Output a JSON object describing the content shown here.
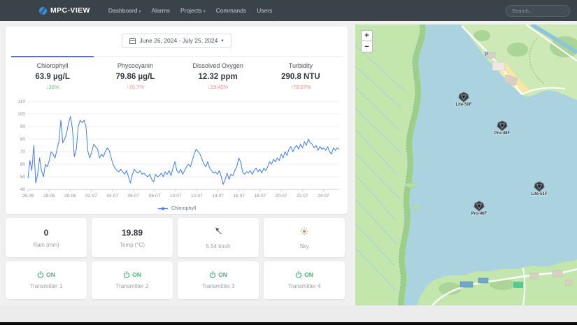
{
  "navbar": {
    "brand": "MPC-VIEW",
    "menu": [
      {
        "label": "Dashboard",
        "dropdown": true
      },
      {
        "label": "Alarms",
        "dropdown": false
      },
      {
        "label": "Projects",
        "dropdown": true
      },
      {
        "label": "Commands",
        "dropdown": false
      },
      {
        "label": "Users",
        "dropdown": false
      }
    ],
    "search_placeholder": "Search..."
  },
  "toolbar": {
    "date_range": "June 26, 2024 - July 25, 2024"
  },
  "metrics": [
    {
      "label": "Chlorophyll",
      "value": "63.9 µg/L",
      "change": "30%",
      "direction": "down",
      "trend_color": "#6fbf82",
      "active": true
    },
    {
      "label": "Phycocyanin",
      "value": "79.86 µg/L",
      "change": "79.7%",
      "direction": "up",
      "trend_color": "#f08c8c",
      "active": false
    },
    {
      "label": "Dissolved Oxygen",
      "value": "12.32 ppm",
      "change": "19.42%",
      "direction": "down",
      "trend_color": "#f08c8c",
      "active": false
    },
    {
      "label": "Turbidity",
      "value": "290.8 NTU",
      "change": "78.07%",
      "direction": "up",
      "trend_color": "#f08c8c",
      "active": false
    }
  ],
  "chart_data": {
    "type": "line",
    "title": "",
    "xlabel": "",
    "ylabel": "",
    "ylim": [
      40,
      110
    ],
    "y_ticks": [
      40,
      50,
      60,
      70,
      80,
      90,
      100,
      110
    ],
    "x_ticks": [
      "26-06",
      "28-06",
      "30-06",
      "02-07",
      "04-07",
      "06-07",
      "08-07",
      "10-07",
      "12-07",
      "14-07",
      "16-07",
      "18-07",
      "20-07",
      "22-07",
      "24-07"
    ],
    "x_total_days": 29.5,
    "x_tick_interval_days": 2,
    "grid": true,
    "legend_position": "bottom",
    "series": [
      {
        "name": "Chlorophyll",
        "color": "#3f7ee8",
        "values": [
          49,
          63,
          55,
          75,
          45,
          52,
          65,
          55,
          50,
          60,
          58,
          63,
          70,
          68,
          65,
          72,
          78,
          95,
          77,
          80,
          85,
          93,
          98,
          88,
          66,
          72,
          90,
          95,
          93,
          95,
          90,
          70,
          65,
          70,
          76,
          74,
          72,
          65,
          68,
          66,
          70,
          73,
          71,
          65,
          60,
          57,
          55,
          54,
          56,
          54,
          52,
          55,
          50,
          45,
          52,
          56,
          54,
          53,
          55,
          52,
          53,
          51,
          50,
          52,
          48,
          46,
          52,
          50,
          51,
          53,
          50,
          54,
          52,
          55,
          51,
          57,
          62,
          55,
          53,
          56,
          52,
          55,
          58,
          60,
          58,
          63,
          68,
          72,
          70,
          68,
          64,
          60,
          58,
          62,
          57,
          55,
          53,
          54,
          52,
          55,
          50,
          44,
          48,
          53,
          48,
          52,
          51,
          55,
          58,
          65,
          62,
          54,
          52,
          54,
          53,
          55,
          52,
          55,
          57,
          54,
          56,
          53,
          57,
          55,
          58,
          62,
          60,
          64,
          62,
          65,
          63,
          68,
          65,
          70,
          67,
          72,
          74,
          70,
          73,
          75,
          72,
          76,
          73,
          78,
          75,
          80,
          77,
          76,
          73,
          75,
          71,
          74,
          72,
          73,
          71,
          74,
          70,
          68,
          73,
          71,
          73,
          72
        ]
      }
    ]
  },
  "weather": [
    {
      "value": "0",
      "label": "Rain (mm)",
      "icon": null
    },
    {
      "value": "19.89",
      "label": "Temp (°C)",
      "icon": null
    },
    {
      "value": null,
      "label": "5.54 km/h",
      "icon": "wind-direction-arrow"
    },
    {
      "value": null,
      "label": "Sky",
      "icon": "sun"
    }
  ],
  "transmitters": [
    {
      "status": "ON",
      "label": "Transmitter 1"
    },
    {
      "status": "ON",
      "label": "Transmitter 2"
    },
    {
      "status": "ON",
      "label": "Transmitter 3"
    },
    {
      "status": "ON",
      "label": "Transmitter 4"
    }
  ],
  "map": {
    "zoom_in_label": "+",
    "zoom_out_label": "−",
    "markers": [
      {
        "label": "Lite-50F",
        "x": 155,
        "y": 104
      },
      {
        "label": "Pro-48F",
        "x": 210,
        "y": 145
      },
      {
        "label": "Lite-51F",
        "x": 263,
        "y": 232
      },
      {
        "label": "Pro-46F",
        "x": 177,
        "y": 260
      }
    ],
    "colors": {
      "water": "#aad3df",
      "land": "#c3e6ad",
      "sand": "#f6e7a6"
    }
  },
  "status_colors": {
    "on_green": "#4caf7d",
    "accent": "#5f6bd8",
    "up_red": "#f08c8c",
    "down_green": "#6fbf82"
  }
}
